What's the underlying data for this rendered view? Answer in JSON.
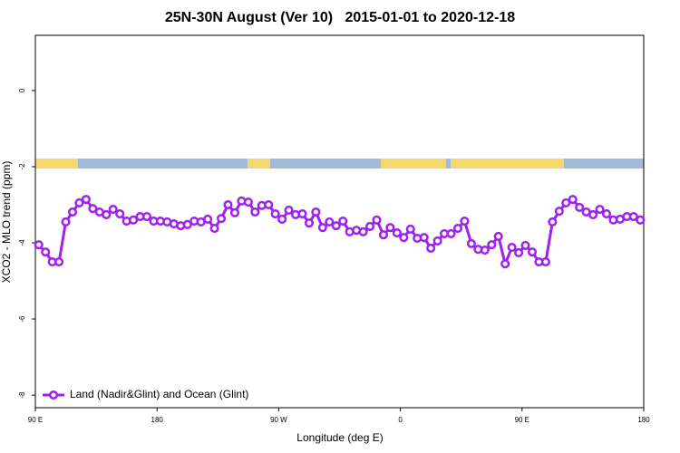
{
  "chart_data": {
    "type": "line",
    "title": "25N-30N August (Ver 10)   2015-01-01 to 2020-12-18",
    "x_label": "Longitude (deg E)",
    "y_label": "XCO2 - MLO trend (ppm)",
    "xlim": [
      90,
      540
    ],
    "ylim": [
      -8.33,
      1.45
    ],
    "xticks": [
      {
        "value": 90,
        "label": "90 E"
      },
      180,
      {
        "value": 270,
        "label": "90 W"
      },
      {
        "value": 360,
        "label": "0"
      },
      {
        "value": 450,
        "label": "90 E"
      },
      {
        "value": 540,
        "label": "180"
      }
    ],
    "yticks": [
      0,
      -2,
      -4,
      -6,
      -8
    ],
    "legend_position": "bottom-left",
    "grid": false,
    "x": [
      92.5,
      97.5,
      102.5,
      107.5,
      112.5,
      117.5,
      122.5,
      127.5,
      132.5,
      137.5,
      142.5,
      147.5,
      152.5,
      157.5,
      162.5,
      167.5,
      172.5,
      177.5,
      182.5,
      187.5,
      192.5,
      197.5,
      202.5,
      207.5,
      212.5,
      217.5,
      222.5,
      227.5,
      232.5,
      237.5,
      242.5,
      247.5,
      252.5,
      257.5,
      262.5,
      267.5,
      272.5,
      277.5,
      282.5,
      287.5,
      292.5,
      297.5,
      302.5,
      307.5,
      312.5,
      317.5,
      322.5,
      327.5,
      332.5,
      337.5,
      342.5,
      347.5,
      352.5,
      357.5,
      362.5,
      367.5,
      372.5,
      377.5,
      382.5,
      387.5,
      392.5,
      397.5,
      402.5,
      407.5,
      412.5,
      417.5,
      422.5,
      427.5,
      432.5,
      437.5,
      442.5,
      447.5,
      452.5,
      457.5,
      462.5,
      467.5,
      472.5,
      477.5,
      482.5,
      487.5,
      492.5,
      497.5,
      502.5,
      507.5,
      512.5,
      517.5,
      522.5,
      527.5,
      532.5,
      537.5
    ],
    "series": [
      {
        "name": "Land (Nadir&Glint) and Ocean (Glint)",
        "color": "#a020f0",
        "values": [
          -4.05,
          -4.24,
          -4.5,
          -4.5,
          -3.45,
          -3.19,
          -2.95,
          -2.86,
          -3.1,
          -3.19,
          -3.26,
          -3.12,
          -3.24,
          -3.43,
          -3.4,
          -3.31,
          -3.31,
          -3.43,
          -3.43,
          -3.45,
          -3.5,
          -3.55,
          -3.52,
          -3.43,
          -3.45,
          -3.38,
          -3.62,
          -3.36,
          -3.0,
          -3.21,
          -2.9,
          -2.93,
          -3.19,
          -3.02,
          -3.0,
          -3.24,
          -3.38,
          -3.14,
          -3.26,
          -3.24,
          -3.48,
          -3.19,
          -3.6,
          -3.45,
          -3.55,
          -3.43,
          -3.71,
          -3.67,
          -3.71,
          -3.57,
          -3.4,
          -3.79,
          -3.6,
          -3.74,
          -3.86,
          -3.64,
          -3.88,
          -3.86,
          -4.14,
          -3.95,
          -3.76,
          -3.76,
          -3.62,
          -3.43,
          -4.02,
          -4.17,
          -4.19,
          -4.05,
          -3.83,
          -4.55,
          -4.12,
          -4.26,
          -4.07,
          -4.24,
          -4.5,
          -4.5,
          -3.45,
          -3.17,
          -2.95,
          -2.86,
          -3.07,
          -3.19,
          -3.26,
          -3.12,
          -3.24,
          -3.4,
          -3.38,
          -3.31,
          -3.31,
          -3.4
        ]
      }
    ]
  }
}
